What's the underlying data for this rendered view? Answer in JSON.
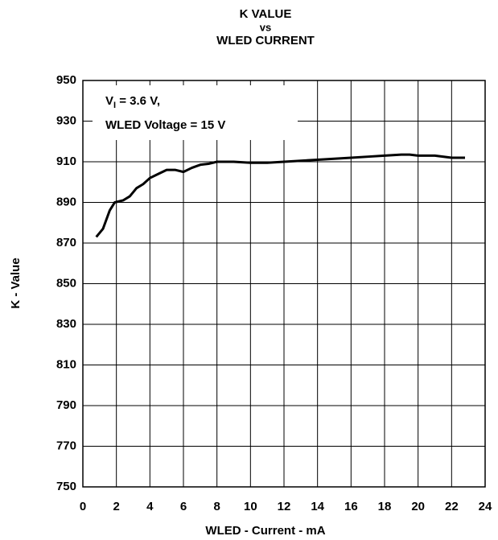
{
  "chart_data": {
    "type": "line",
    "title": [
      "K VALUE",
      "vs",
      "WLED CURRENT"
    ],
    "annotation": {
      "symbol": "V",
      "subscript": "I",
      "rest": " = 3.6 V,",
      "line2": "WLED Voltage = 15 V"
    },
    "x_label": "WLED - Current - mA",
    "y_label": "K - Value",
    "x": [
      0.8,
      1.2,
      1.6,
      1.9,
      2.4,
      2.8,
      3.2,
      3.6,
      4.0,
      4.5,
      5.0,
      5.5,
      6.0,
      6.5,
      7.0,
      7.5,
      8,
      9,
      10,
      11,
      12,
      13,
      14,
      15,
      16,
      17,
      18,
      19,
      19.5,
      20,
      21,
      22,
      22.8
    ],
    "series": [
      {
        "name": "K",
        "color": "#000000",
        "values": [
          873,
          877,
          886,
          890,
          891,
          893,
          897,
          899,
          902,
          904,
          906,
          906,
          905,
          907,
          908.5,
          909,
          910,
          910,
          909.5,
          909.5,
          910,
          910.5,
          911,
          911.5,
          912,
          912.5,
          913,
          913.5,
          913.5,
          913,
          913,
          912,
          912
        ]
      }
    ],
    "xlim": [
      0,
      24
    ],
    "xticks": [
      0,
      2,
      4,
      6,
      8,
      10,
      12,
      14,
      16,
      18,
      20,
      22,
      24
    ],
    "ylim": [
      750,
      950
    ],
    "yticks": [
      750,
      770,
      790,
      810,
      830,
      850,
      870,
      890,
      910,
      930,
      950
    ],
    "grid": true
  }
}
